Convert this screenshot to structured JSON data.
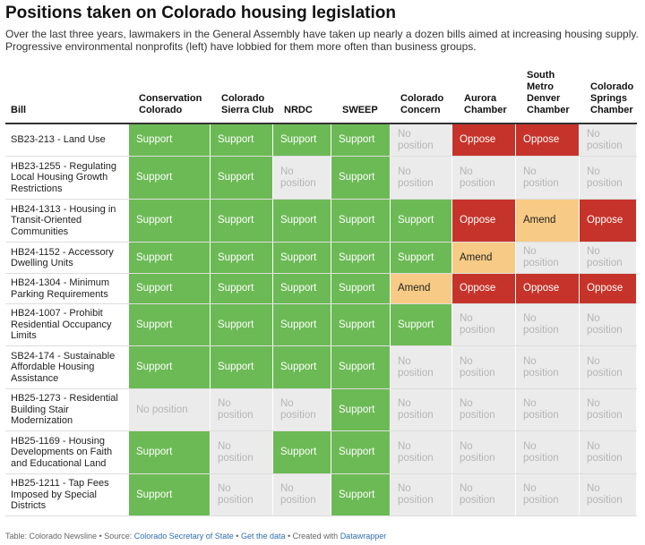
{
  "title": "Positions taken on Colorado housing legislation",
  "subtitle": "Over the last three years, lawmakers in the General Assembly have taken up nearly a dozen bills aimed at increasing housing supply. Progressive environmental nonprofits (left) have lobbied for them more often than business groups.",
  "colors": {
    "support": "#6cba55",
    "oppose": "#c6332a",
    "amend": "#f7cb85",
    "none": "#ebebeb"
  },
  "table": {
    "bill_header": "Bill",
    "columns": [
      "Conservation Colorado",
      "Colorado Sierra Club",
      "NRDC",
      "SWEEP",
      "Colorado Concern",
      "Aurora Chamber",
      "South Metro Denver Chamber",
      "Colorado Springs Chamber"
    ],
    "rows": [
      {
        "bill": "SB23-213 - Land Use",
        "positions": [
          "Support",
          "Support",
          "Support",
          "Support",
          "No position",
          "Oppose",
          "Oppose",
          "No position"
        ]
      },
      {
        "bill": "HB23-1255 - Regulating Local Housing Growth Restrictions",
        "positions": [
          "Support",
          "Support",
          "No position",
          "Support",
          "No position",
          "No position",
          "No position",
          "No position"
        ]
      },
      {
        "bill": "HB24-1313 - Housing in Transit-Oriented Communities",
        "positions": [
          "Support",
          "Support",
          "Support",
          "Support",
          "Support",
          "Oppose",
          "Amend",
          "Oppose"
        ]
      },
      {
        "bill": "HB24-1152 - Accessory Dwelling Units",
        "positions": [
          "Support",
          "Support",
          "Support",
          "Support",
          "Support",
          "Amend",
          "No position",
          "No position"
        ]
      },
      {
        "bill": "HB24-1304 - Minimum Parking Requirements",
        "positions": [
          "Support",
          "Support",
          "Support",
          "Support",
          "Amend",
          "Oppose",
          "Oppose",
          "Oppose"
        ]
      },
      {
        "bill": "HB24-1007 - Prohibit Residential Occupancy Limits",
        "positions": [
          "Support",
          "Support",
          "Support",
          "Support",
          "Support",
          "No position",
          "No position",
          "No position"
        ]
      },
      {
        "bill": "SB24-174 - Sustainable Affordable Housing Assistance",
        "positions": [
          "Support",
          "Support",
          "Support",
          "Support",
          "No position",
          "No position",
          "No position",
          "No position"
        ]
      },
      {
        "bill": "HB25-1273 - Residential Building Stair Modernization",
        "positions": [
          "No position",
          "No position",
          "No position",
          "Support",
          "No position",
          "No position",
          "No position",
          "No position"
        ]
      },
      {
        "bill": "HB25-1169 - Housing Developments on Faith and Educational Land",
        "positions": [
          "Support",
          "No position",
          "Support",
          "Support",
          "No position",
          "No position",
          "No position",
          "No position"
        ]
      },
      {
        "bill": "HB25-1211 - Tap Fees Imposed by Special Districts",
        "positions": [
          "Support",
          "No position",
          "No position",
          "Support",
          "No position",
          "No position",
          "No position",
          "No position"
        ]
      }
    ]
  },
  "footer": {
    "prefix": "Table: Colorado Newsline • Source: ",
    "source_link": "Colorado Secretary of State",
    "sep1": " • ",
    "data_link": "Get the data",
    "sep2": " • Created with ",
    "dw_link": "Datawrapper"
  }
}
